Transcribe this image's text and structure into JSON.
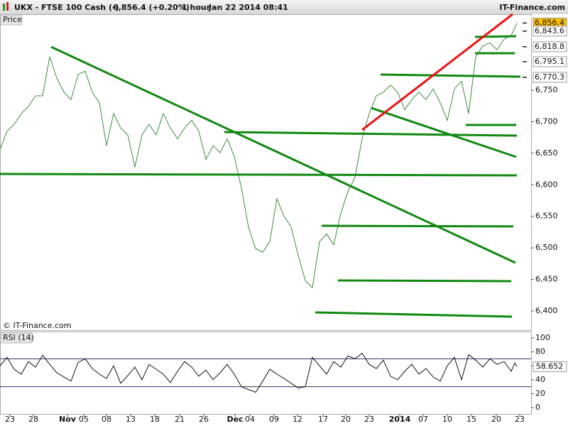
{
  "header": {
    "symbol": "UKX - FTSE 100 Cash (-)",
    "quote": "6,856.4 (+0.20%)",
    "interval": "1 hour",
    "datetime": "Jan 22 2014 08:41",
    "brand": "IT-Finance.com"
  },
  "chart_data": [
    {
      "type": "line",
      "title": "Price",
      "watermark": "© IT-Finance.com",
      "color": "#3f8a3f",
      "x": [
        0,
        10,
        20,
        30,
        40,
        50,
        60,
        70,
        80,
        90,
        100,
        110,
        120,
        130,
        140,
        150,
        160,
        170,
        180,
        190,
        200,
        210,
        220,
        230,
        240,
        250,
        260,
        270,
        280,
        290,
        300,
        310,
        320,
        330,
        340,
        350,
        360,
        370,
        380,
        390,
        400,
        410,
        420,
        430,
        440,
        450,
        460,
        470,
        480,
        490,
        500,
        510,
        520,
        530,
        540,
        550,
        560,
        570,
        580,
        590,
        600,
        610,
        620,
        630,
        640,
        650,
        660,
        670,
        680,
        690,
        700,
        710,
        720,
        725,
        728
      ],
      "values": [
        6656,
        6685,
        6696,
        6713,
        6724,
        6741,
        6741,
        6803,
        6769,
        6747,
        6735,
        6775,
        6780,
        6747,
        6730,
        6662,
        6713,
        6690,
        6679,
        6628,
        6679,
        6696,
        6679,
        6713,
        6690,
        6673,
        6690,
        6702,
        6685,
        6640,
        6662,
        6651,
        6673,
        6645,
        6595,
        6533,
        6499,
        6493,
        6510,
        6578,
        6550,
        6533,
        6488,
        6448,
        6437,
        6510,
        6522,
        6505,
        6555,
        6589,
        6612,
        6673,
        6713,
        6741,
        6747,
        6758,
        6747,
        6719,
        6735,
        6747,
        6735,
        6752,
        6730,
        6702,
        6752,
        6764,
        6713,
        6803,
        6820,
        6825,
        6814,
        6831,
        6837,
        6848,
        6856.4
      ],
      "xlim": [
        0,
        748
      ],
      "ylim": [
        6369.6,
        6870.4
      ],
      "yticks": [
        {
          "value": 6400,
          "label": "6,400"
        },
        {
          "value": 6450,
          "label": "6,450"
        },
        {
          "value": 6500,
          "label": "6,500"
        },
        {
          "value": 6550,
          "label": "6,550"
        },
        {
          "value": 6600,
          "label": "6,600"
        },
        {
          "value": 6650,
          "label": "6,650"
        },
        {
          "value": 6700,
          "label": "6,700"
        },
        {
          "value": 6750,
          "label": "6,750"
        }
      ],
      "price_levels": {
        "values": [
          6856.4,
          6843.6,
          6818.8,
          6795.1,
          6770.3
        ],
        "value_labels": [
          "6,856.4",
          "6,843.6",
          "6,818.8",
          "6,795.1",
          "6,770.3"
        ],
        "colors": [
          "#ffc000",
          "#ffffff",
          "#ffffff",
          "#ffffff",
          "#ffffff"
        ]
      },
      "lines": [
        {
          "x": [
            72,
            726
          ],
          "y": [
            6818.6,
            6476.4
          ],
          "color": "#118811"
        },
        {
          "x": [
            0,
            728
          ],
          "y": [
            6617.2,
            6614.9
          ],
          "color": "#118811"
        },
        {
          "x": [
            316,
            728
          ],
          "y": [
            6683.6,
            6678.0
          ],
          "color": "#118811"
        },
        {
          "x": [
            453,
            723
          ],
          "y": [
            6535,
            6534
          ],
          "color": "#118811"
        },
        {
          "x": [
            476,
            720
          ],
          "y": [
            6448.4,
            6447.3
          ],
          "color": "#118811"
        },
        {
          "x": [
            444,
            721
          ],
          "y": [
            6397.7,
            6391
          ],
          "color": "#118811"
        },
        {
          "x": [
            536,
            733
          ],
          "y": [
            6774.7,
            6771.4
          ],
          "color": "#118811"
        },
        {
          "x": [
            523,
            727
          ],
          "y": [
            6721.8,
            6644.2
          ],
          "color": "#118811"
        },
        {
          "x": [
            656,
            727
          ],
          "y": [
            6694.8,
            6694.8
          ],
          "color": "#118811"
        },
        {
          "x": [
            669,
            727
          ],
          "y": [
            6834.4,
            6835.5
          ],
          "color": "#118811"
        },
        {
          "x": [
            669,
            725
          ],
          "y": [
            6808.5,
            6808.5
          ],
          "color": "#118811"
        },
        {
          "x": [
            510,
            722
          ],
          "y": [
            6687,
            6870.4
          ],
          "color": "#ee1111"
        }
      ]
    },
    {
      "type": "line",
      "title": "RSI (14)",
      "color": "#111111",
      "x": [
        0,
        10,
        20,
        30,
        40,
        50,
        60,
        70,
        80,
        90,
        100,
        110,
        120,
        130,
        140,
        150,
        160,
        170,
        180,
        190,
        200,
        210,
        220,
        230,
        240,
        250,
        260,
        270,
        280,
        290,
        300,
        310,
        320,
        330,
        340,
        350,
        360,
        370,
        380,
        390,
        400,
        410,
        420,
        430,
        440,
        450,
        460,
        470,
        480,
        490,
        500,
        510,
        520,
        530,
        540,
        550,
        560,
        570,
        580,
        590,
        600,
        610,
        620,
        630,
        640,
        650,
        660,
        670,
        680,
        690,
        700,
        710,
        720,
        725,
        728
      ],
      "values": [
        60,
        72,
        55,
        48,
        66,
        58,
        75,
        62,
        50,
        44,
        38,
        65,
        70,
        56,
        48,
        42,
        60,
        35,
        46,
        58,
        40,
        62,
        55,
        48,
        36,
        52,
        66,
        58,
        45,
        54,
        40,
        50,
        62,
        48,
        30,
        26,
        22,
        38,
        55,
        48,
        42,
        35,
        28,
        30,
        72,
        60,
        48,
        66,
        58,
        74,
        70,
        78,
        62,
        56,
        68,
        45,
        40,
        52,
        62,
        48,
        56,
        44,
        38,
        60,
        72,
        40,
        76,
        68,
        58,
        70,
        62,
        66,
        52,
        64,
        58.652
      ],
      "last_label": "58.652",
      "levels": [
        30,
        70
      ],
      "xlim": [
        0,
        748
      ],
      "ylim": [
        -9,
        108
      ],
      "yticks": [
        0,
        20,
        40,
        60,
        80,
        100
      ],
      "xticks": [
        {
          "value": 14,
          "label": "23"
        },
        {
          "value": 47,
          "label": "28"
        },
        {
          "value": 95,
          "label": "Nov"
        },
        {
          "value": 118,
          "label": "05"
        },
        {
          "value": 150,
          "label": "08"
        },
        {
          "value": 184,
          "label": "13"
        },
        {
          "value": 218,
          "label": "18"
        },
        {
          "value": 253,
          "label": "21"
        },
        {
          "value": 287,
          "label": "26"
        },
        {
          "value": 331,
          "label": "Dec"
        },
        {
          "value": 352,
          "label": "04"
        },
        {
          "value": 386,
          "label": "09"
        },
        {
          "value": 419,
          "label": "12"
        },
        {
          "value": 455,
          "label": "17"
        },
        {
          "value": 487,
          "label": "20"
        },
        {
          "value": 520,
          "label": "23"
        },
        {
          "value": 563,
          "label": "2014"
        },
        {
          "value": 596,
          "label": "07"
        },
        {
          "value": 630,
          "label": "10"
        },
        {
          "value": 664,
          "label": "15"
        },
        {
          "value": 699,
          "label": "20"
        },
        {
          "value": 732,
          "label": "23"
        }
      ]
    }
  ]
}
